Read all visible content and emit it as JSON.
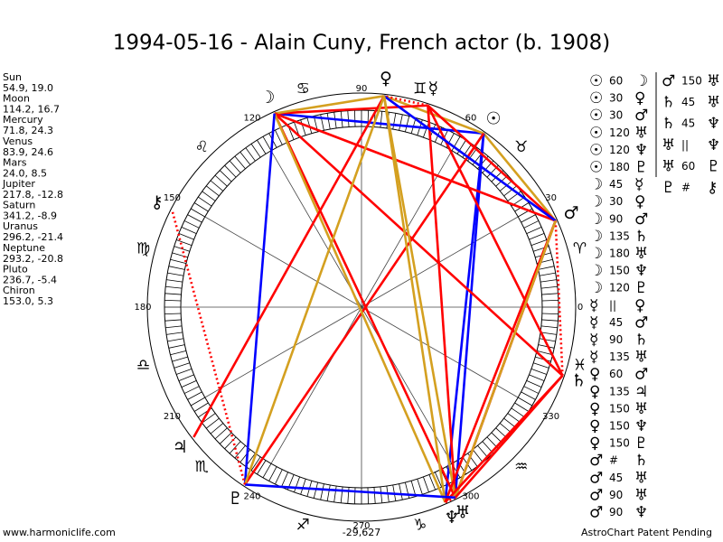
{
  "title": "1994-05-16 - Alain Cuny, French actor (b. 1908)",
  "planets": [
    {
      "name": "Sun",
      "glyph": "☉",
      "position": "54.9, 19.0"
    },
    {
      "name": "Moon",
      "glyph": "☽",
      "position": "114.2, 16.7"
    },
    {
      "name": "Mercury",
      "glyph": "☿",
      "position": "71.8, 24.3"
    },
    {
      "name": "Venus",
      "glyph": "♀",
      "position": "83.9, 24.6"
    },
    {
      "name": "Mars",
      "glyph": "♂",
      "position": "24.0, 8.5"
    },
    {
      "name": "Jupiter",
      "glyph": "♃",
      "position": "217.8, -12.8"
    },
    {
      "name": "Saturn",
      "glyph": "♄",
      "position": "341.2, -8.9"
    },
    {
      "name": "Uranus",
      "glyph": "♅",
      "position": "296.2, -21.4"
    },
    {
      "name": "Neptune",
      "glyph": "♆",
      "position": "293.2, -20.8"
    },
    {
      "name": "Pluto",
      "glyph": "♇",
      "position": "236.7, -5.4"
    },
    {
      "name": "Chiron",
      "glyph": "⚷",
      "position": "153.0, 5.3"
    }
  ],
  "signs": [
    "♈",
    "♉",
    "♊",
    "♋",
    "♌",
    "♍",
    "♎",
    "♏",
    "♐",
    "♑",
    "♒",
    "♓"
  ],
  "wheel_degrees": [
    0,
    30,
    60,
    90,
    120,
    150,
    180,
    210,
    240,
    270,
    300,
    330
  ],
  "center_label": "-29,627",
  "aspects": [
    {
      "from": "☉",
      "aspect": 60,
      "to": "☽"
    },
    {
      "from": "☉",
      "aspect": 30,
      "to": "♀"
    },
    {
      "from": "☉",
      "aspect": 30,
      "to": "♂"
    },
    {
      "from": "☉",
      "aspect": 120,
      "to": "♅"
    },
    {
      "from": "☉",
      "aspect": 120,
      "to": "♆"
    },
    {
      "from": "☉",
      "aspect": 180,
      "to": "♇"
    },
    {
      "from": "☽",
      "aspect": 45,
      "to": "☿"
    },
    {
      "from": "☽",
      "aspect": 30,
      "to": "♀"
    },
    {
      "from": "☽",
      "aspect": 90,
      "to": "♂"
    },
    {
      "from": "☽",
      "aspect": 135,
      "to": "♄"
    },
    {
      "from": "☽",
      "aspect": 180,
      "to": "♅"
    },
    {
      "from": "☽",
      "aspect": 150,
      "to": "♆"
    },
    {
      "from": "☽",
      "aspect": 120,
      "to": "♇"
    },
    {
      "from": "☿",
      "aspect": "||",
      "to": "♀"
    },
    {
      "from": "☿",
      "aspect": 45,
      "to": "♂"
    },
    {
      "from": "☿",
      "aspect": 90,
      "to": "♄"
    },
    {
      "from": "☿",
      "aspect": 135,
      "to": "♅"
    },
    {
      "from": "♀",
      "aspect": 60,
      "to": "♂"
    },
    {
      "from": "♀",
      "aspect": 135,
      "to": "♃"
    },
    {
      "from": "♀",
      "aspect": 150,
      "to": "♅"
    },
    {
      "from": "♀",
      "aspect": 150,
      "to": "♆"
    },
    {
      "from": "♀",
      "aspect": 150,
      "to": "♇"
    },
    {
      "from": "♂",
      "aspect": "#",
      "to": "♄"
    },
    {
      "from": "♂",
      "aspect": 45,
      "to": "♅"
    },
    {
      "from": "♂",
      "aspect": 90,
      "to": "♅"
    },
    {
      "from": "♂",
      "aspect": 90,
      "to": "♆"
    },
    {
      "from": "♂",
      "aspect": 150,
      "to": "♅"
    },
    {
      "from": "♄",
      "aspect": 45,
      "to": "♅"
    },
    {
      "from": "♄",
      "aspect": 45,
      "to": "♆"
    },
    {
      "from": "♅",
      "aspect": "||",
      "to": "♆"
    },
    {
      "from": "♅",
      "aspect": 60,
      "to": "♇"
    },
    {
      "from": "♇",
      "aspect": "#",
      "to": "⚷"
    }
  ],
  "footer": {
    "left": "www.harmoniclife.com",
    "right": "AstroChart Patent Pending"
  }
}
